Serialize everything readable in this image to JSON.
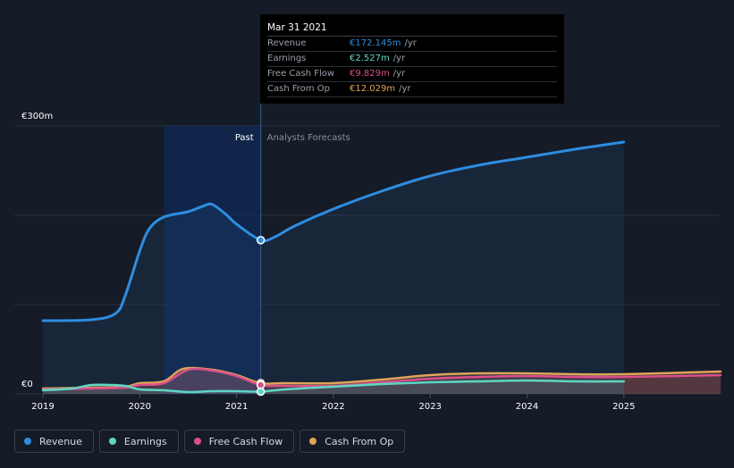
{
  "chart_data": {
    "type": "line",
    "y_axis": {
      "top_label": "€300m",
      "bottom_label": "€0",
      "ylim": [
        0,
        300
      ]
    },
    "x_ticks": [
      "2019",
      "2020",
      "2021",
      "2022",
      "2023",
      "2024",
      "2025"
    ],
    "region_labels": {
      "past": "Past",
      "forecast": "Analysts Forecasts"
    },
    "past_range": [
      2020.25,
      2021.25
    ],
    "series": [
      {
        "name": "Revenue",
        "color": "#2e8de0",
        "points": [
          [
            2019.0,
            82
          ],
          [
            2019.5,
            83
          ],
          [
            2019.75,
            90
          ],
          [
            2019.85,
            110
          ],
          [
            2020.0,
            160
          ],
          [
            2020.1,
            185
          ],
          [
            2020.25,
            198
          ],
          [
            2020.5,
            204
          ],
          [
            2020.65,
            210
          ],
          [
            2020.75,
            212
          ],
          [
            2020.9,
            200
          ],
          [
            2021.0,
            190
          ],
          [
            2021.25,
            172.145
          ],
          [
            2021.4,
            176
          ],
          [
            2021.6,
            188
          ],
          [
            2022.0,
            207
          ],
          [
            2022.5,
            227
          ],
          [
            2023.0,
            244
          ],
          [
            2023.5,
            256
          ],
          [
            2024.0,
            265
          ],
          [
            2024.5,
            274
          ],
          [
            2025.0,
            282
          ]
        ],
        "forecast_from": 2021.25
      },
      {
        "name": "Earnings",
        "color": "#5ed6c4",
        "points": [
          [
            2019.0,
            4
          ],
          [
            2019.3,
            6
          ],
          [
            2019.5,
            10
          ],
          [
            2019.7,
            10
          ],
          [
            2019.85,
            9
          ],
          [
            2020.0,
            5
          ],
          [
            2020.25,
            4
          ],
          [
            2020.5,
            2
          ],
          [
            2020.75,
            3
          ],
          [
            2021.0,
            3
          ],
          [
            2021.25,
            2.527
          ],
          [
            2021.5,
            5
          ],
          [
            2022.0,
            8
          ],
          [
            2022.5,
            11
          ],
          [
            2023.0,
            13
          ],
          [
            2023.5,
            14
          ],
          [
            2024.0,
            15
          ],
          [
            2024.5,
            14
          ],
          [
            2025.0,
            14
          ]
        ],
        "forecast_from": 2021.25
      },
      {
        "name": "Free Cash Flow",
        "color": "#d94f8b",
        "points": [
          [
            2019.0,
            5
          ],
          [
            2019.5,
            6
          ],
          [
            2019.85,
            7
          ],
          [
            2020.0,
            10
          ],
          [
            2020.25,
            12
          ],
          [
            2020.5,
            27
          ],
          [
            2020.75,
            26
          ],
          [
            2021.0,
            20
          ],
          [
            2021.25,
            9.829
          ],
          [
            2021.5,
            9
          ],
          [
            2022.0,
            9
          ],
          [
            2022.5,
            13
          ],
          [
            2023.0,
            17
          ],
          [
            2023.5,
            19
          ],
          [
            2024.0,
            20
          ],
          [
            2024.5,
            19
          ],
          [
            2025.0,
            19
          ],
          [
            2026.0,
            21
          ]
        ],
        "forecast_from": 2021.25
      },
      {
        "name": "Cash From Op",
        "color": "#e0a458",
        "points": [
          [
            2019.0,
            6
          ],
          [
            2019.5,
            7
          ],
          [
            2019.85,
            8
          ],
          [
            2020.0,
            12
          ],
          [
            2020.25,
            14
          ],
          [
            2020.45,
            28
          ],
          [
            2020.75,
            27
          ],
          [
            2021.0,
            21
          ],
          [
            2021.25,
            12.029
          ],
          [
            2021.5,
            12
          ],
          [
            2022.0,
            12
          ],
          [
            2022.5,
            16
          ],
          [
            2023.0,
            21
          ],
          [
            2023.5,
            23
          ],
          [
            2024.0,
            23
          ],
          [
            2024.5,
            22
          ],
          [
            2025.0,
            22
          ],
          [
            2026.0,
            25
          ]
        ],
        "forecast_from": 2021.25
      }
    ]
  },
  "tooltip": {
    "date": "Mar 31 2021",
    "rows": [
      {
        "label": "Revenue",
        "value": "€172.145m",
        "unit": "/yr",
        "color": "#2e8de0"
      },
      {
        "label": "Earnings",
        "value": "€2.527m",
        "unit": "/yr",
        "color": "#5ed6c4"
      },
      {
        "label": "Free Cash Flow",
        "value": "€9.829m",
        "unit": "/yr",
        "color": "#d94f8b"
      },
      {
        "label": "Cash From Op",
        "value": "€12.029m",
        "unit": "/yr",
        "color": "#e0a458"
      }
    ]
  },
  "legend": [
    {
      "label": "Revenue",
      "color": "#2e8de0"
    },
    {
      "label": "Earnings",
      "color": "#5ed6c4"
    },
    {
      "label": "Free Cash Flow",
      "color": "#d94f8b"
    },
    {
      "label": "Cash From Op",
      "color": "#e0a458"
    }
  ]
}
